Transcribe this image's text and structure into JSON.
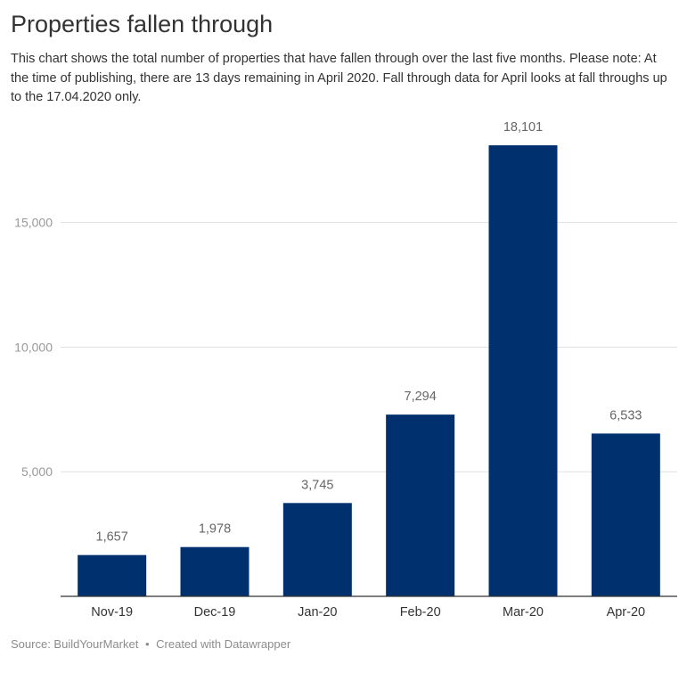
{
  "header": {
    "title": "Properties fallen through",
    "description": "This chart shows the total number of properties that have fallen through over the last five months. Please note: At the time of publishing, there are 13 days remaining in April 2020. Fall through data for April looks at fall throughs up to the 17.04.2020 only."
  },
  "footer": {
    "source_label": "Source: BuildYourMarket",
    "separator": "•",
    "credit": "Created with Datawrapper"
  },
  "chart_data": {
    "type": "bar",
    "categories": [
      "Nov-19",
      "Dec-19",
      "Jan-20",
      "Feb-20",
      "Mar-20",
      "Apr-20"
    ],
    "values": [
      1657,
      1978,
      3745,
      7294,
      18101,
      6533
    ],
    "value_labels": [
      "1,657",
      "1,978",
      "3,745",
      "7,294",
      "18,101",
      "6,533"
    ],
    "title": "Properties fallen through",
    "xlabel": "",
    "ylabel": "",
    "ylim": [
      0,
      18101
    ],
    "yticks": [
      5000,
      10000,
      15000
    ],
    "ytick_labels": [
      "5,000",
      "10,000",
      "15,000"
    ],
    "grid": true,
    "colors": {
      "bar": "#00316e",
      "grid": "#e0e0e0",
      "axis": "#333333",
      "tick_text": "#999999",
      "label_text": "#666666"
    }
  }
}
